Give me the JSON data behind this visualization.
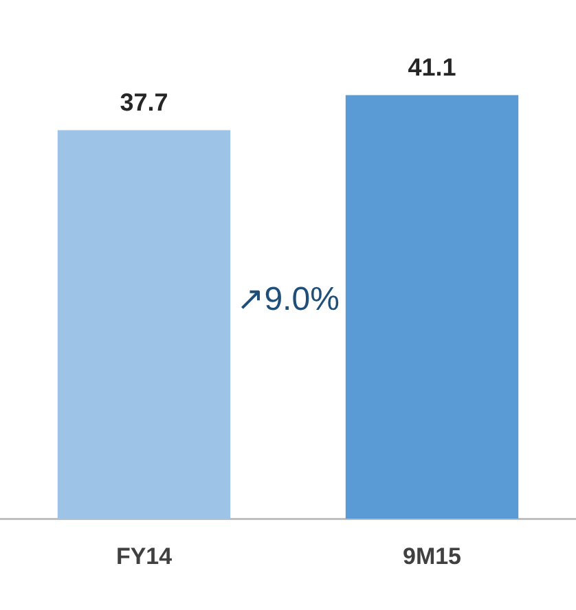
{
  "chart_data": {
    "type": "bar",
    "categories": [
      "FY14",
      "9M15"
    ],
    "values": [
      37.7,
      41.1
    ],
    "colors": [
      "#9dc3e6",
      "#5b9bd5"
    ],
    "data_labels": true,
    "annotations": [
      "↗9.0%"
    ]
  }
}
